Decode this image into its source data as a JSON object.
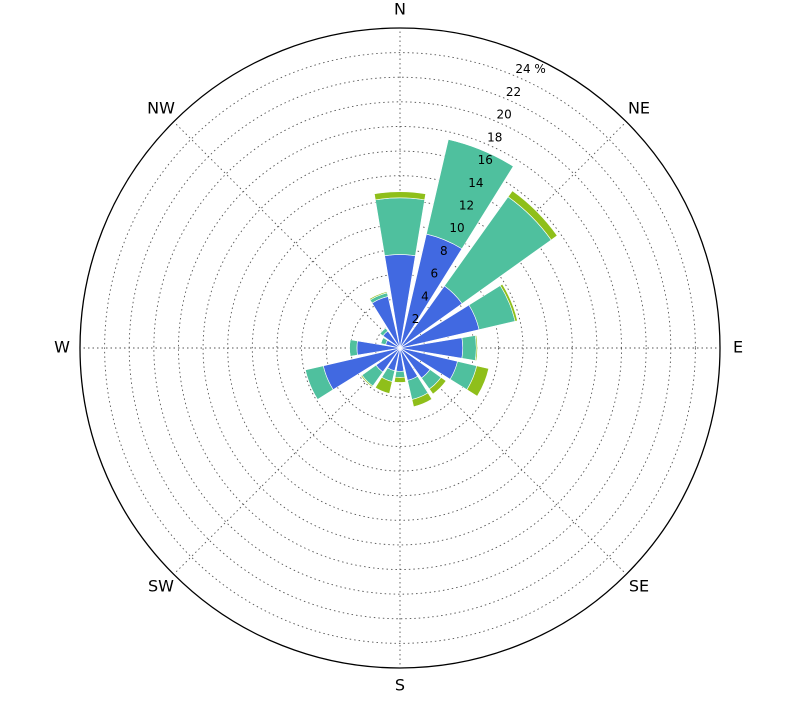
{
  "chart_data": {
    "type": "windrose",
    "categories": [
      "N",
      null,
      "NE",
      null,
      "E",
      null,
      "SE",
      null,
      "S",
      null,
      "SW",
      null,
      "W",
      null,
      "NW",
      null
    ],
    "series": [
      {
        "color": "#4169e1",
        "values": [
          7.6,
          9.5,
          6.2,
          6.6,
          5.1,
          4.8,
          3.0,
          2.7,
          1.9,
          1.9,
          2.4,
          6.4,
          3.5,
          1.2,
          1.7,
          4.3
        ]
      },
      {
        "color": "#4fc09e",
        "values": [
          4.6,
          7.9,
          8.9,
          3.0,
          1.1,
          1.6,
          1.1,
          1.6,
          0.5,
          0.9,
          1.4,
          1.5,
          0.6,
          0.4,
          0.3,
          0.3
        ]
      },
      {
        "color": "#8fbf1a",
        "values": [
          0.5,
          0,
          0.6,
          0.2,
          0.1,
          1.0,
          0.5,
          0.6,
          0.4,
          1.0,
          0.1,
          0,
          0,
          0,
          0,
          0.1
        ]
      }
    ],
    "ylim": [
      0,
      26
    ],
    "yticks": [
      2,
      4,
      6,
      8,
      10,
      12,
      14,
      16,
      18,
      20,
      22,
      {
        "value": 24,
        "label": "24 %"
      }
    ],
    "grid": true
  }
}
